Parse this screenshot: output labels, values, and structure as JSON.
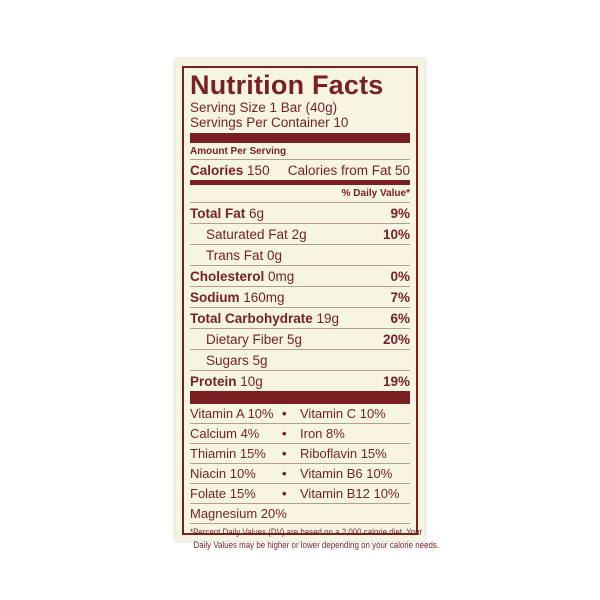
{
  "title": "Nutrition Facts",
  "serving_size": "Serving Size 1 Bar (40g)",
  "servings_per_container": "Servings Per Container  10",
  "amount_per_serving": "Amount Per Serving",
  "calories": {
    "label": "Calories",
    "value": "150",
    "from_fat": "Calories from Fat 50"
  },
  "daily_value_header": "% Daily Value*",
  "nutrients": [
    {
      "label": "Total Fat",
      "amount": "6g",
      "dv": "9%",
      "bold": true
    },
    {
      "label": "Saturated Fat",
      "amount": "2g",
      "dv": "10%",
      "bold": false
    },
    {
      "label": "Trans Fat",
      "amount": "0g",
      "dv": "",
      "bold": false
    },
    {
      "label": "Cholesterol",
      "amount": "0mg",
      "dv": "0%",
      "bold": true
    },
    {
      "label": "Sodium",
      "amount": "160mg",
      "dv": "7%",
      "bold": true
    },
    {
      "label": "Total Carbohydrate",
      "amount": "19g",
      "dv": "6%",
      "bold": true
    },
    {
      "label": "Dietary Fiber",
      "amount": "5g",
      "dv": "20%",
      "bold": false
    },
    {
      "label": "Sugars",
      "amount": "5g",
      "dv": "",
      "bold": false
    },
    {
      "label": "Protein",
      "amount": "10g",
      "dv": "19%",
      "bold": true
    }
  ],
  "vitamins": [
    [
      "Vitamin A 10%",
      "Vitamin C 10%"
    ],
    [
      "Calcium 4%",
      "Iron 8%"
    ],
    [
      "Thiamin 15%",
      "Riboflavin 15%"
    ],
    [
      "Niacin 10%",
      "Vitamin B6 10%"
    ],
    [
      "Folate 15%",
      "Vitamin B12 10%"
    ],
    [
      "Magnesium 20%",
      ""
    ]
  ],
  "bullet": "•",
  "footnote": [
    "*Percent Daily Values (DV) are based on a 2,000 calorie diet. Your",
    "Daily Values may be higher or lower depending on your calorie needs."
  ],
  "colors": {
    "ink": "#7a1f22",
    "background": "#f5f5e2"
  }
}
